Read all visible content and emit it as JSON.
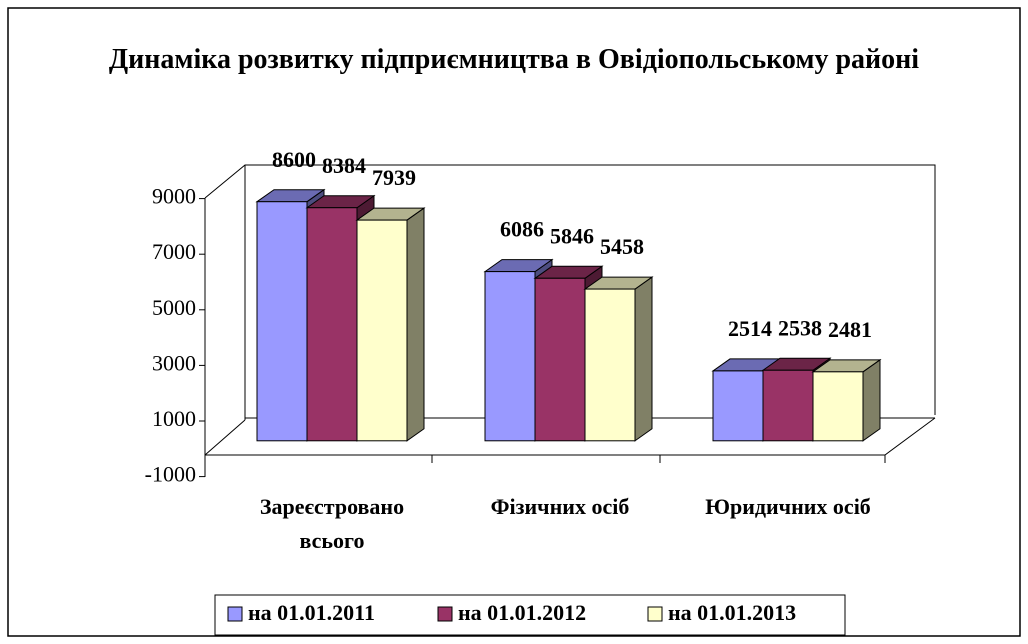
{
  "chart_data": {
    "type": "bar3d",
    "title": "Динаміка розвитку підприємництва в Овідіопольському районі",
    "categories": [
      "Зареєстровано всього",
      "Фізичних осіб",
      "Юридичних осіб"
    ],
    "series": [
      {
        "name": "на 01.01.2011",
        "color": "#9999ff",
        "values": [
          8600,
          6086,
          2514
        ]
      },
      {
        "name": "на 01.01.2012",
        "color": "#993366",
        "values": [
          8384,
          5846,
          2538
        ]
      },
      {
        "name": "на 01.01.2013",
        "color": "#ffffcc",
        "values": [
          7939,
          5458,
          2481
        ]
      }
    ],
    "ylim": [
      -1000,
      9000
    ],
    "yticks": [
      -1000,
      1000,
      3000,
      5000,
      7000,
      9000
    ],
    "legend": "bottom"
  }
}
